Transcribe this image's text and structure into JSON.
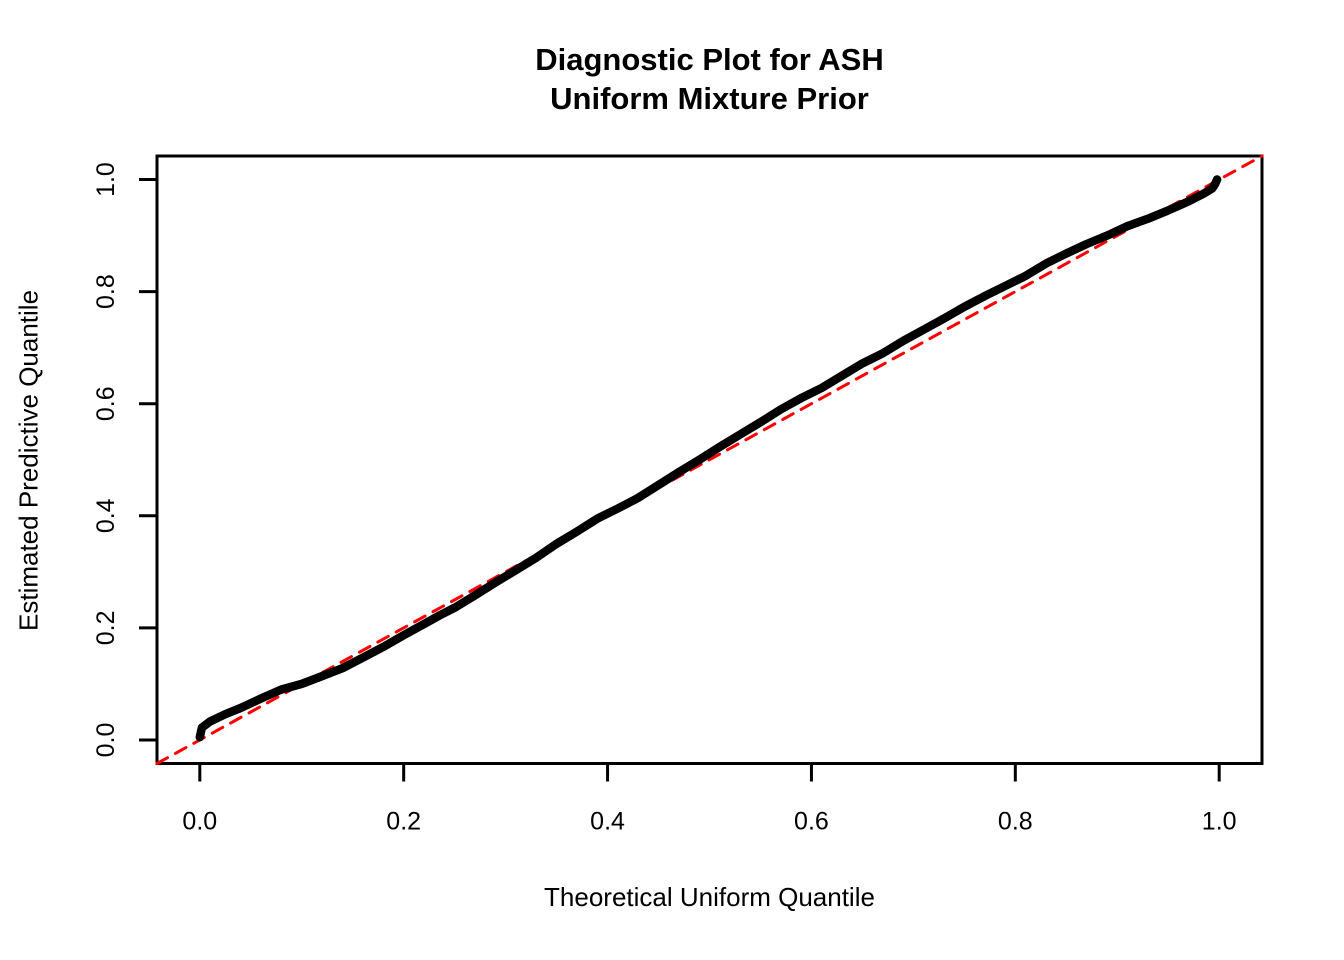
{
  "title": {
    "line1": "Diagnostic Plot for ASH",
    "line2": "Uniform Mixture Prior"
  },
  "axes": {
    "x_label": "Theoretical Uniform Quantile",
    "y_label": "Estimated Predictive Quantile"
  },
  "colors": {
    "background": "#FFFFFF",
    "curve": "#000000",
    "reference_line": "#FF0000",
    "frame": "#000000",
    "text": "#000000"
  },
  "chart_data": {
    "type": "line",
    "title": "Diagnostic Plot for ASH Uniform Mixture Prior",
    "xlabel": "Theoretical Uniform Quantile",
    "ylabel": "Estimated Predictive Quantile",
    "x_ticks": [
      "0.0",
      "0.2",
      "0.4",
      "0.6",
      "0.8",
      "1.0"
    ],
    "y_ticks": [
      "0.0",
      "0.2",
      "0.4",
      "0.6",
      "0.8",
      "1.0"
    ],
    "x_tick_values": [
      0.0,
      0.2,
      0.4,
      0.6,
      0.8,
      1.0
    ],
    "y_tick_values": [
      0.0,
      0.2,
      0.4,
      0.6,
      0.8,
      1.0
    ],
    "xlim": [
      -0.042,
      1.042
    ],
    "ylim": [
      -0.042,
      1.042
    ],
    "grid": false,
    "legend_position": "none",
    "frame": true,
    "series": [
      {
        "name": "estimated-vs-theoretical-quantile-curve",
        "type": "line",
        "color": "#000000",
        "stroke_width": 8.5,
        "dash": null,
        "points": [
          [
            0.0,
            0.005
          ],
          [
            0.002,
            0.022
          ],
          [
            0.01,
            0.033
          ],
          [
            0.025,
            0.046
          ],
          [
            0.04,
            0.057
          ],
          [
            0.06,
            0.074
          ],
          [
            0.08,
            0.09
          ],
          [
            0.1,
            0.1
          ],
          [
            0.12,
            0.114
          ],
          [
            0.14,
            0.128
          ],
          [
            0.16,
            0.147
          ],
          [
            0.18,
            0.166
          ],
          [
            0.2,
            0.187
          ],
          [
            0.22,
            0.207
          ],
          [
            0.235,
            0.222
          ],
          [
            0.25,
            0.236
          ],
          [
            0.27,
            0.258
          ],
          [
            0.29,
            0.281
          ],
          [
            0.31,
            0.303
          ],
          [
            0.33,
            0.325
          ],
          [
            0.35,
            0.35
          ],
          [
            0.37,
            0.372
          ],
          [
            0.39,
            0.395
          ],
          [
            0.41,
            0.413
          ],
          [
            0.43,
            0.432
          ],
          [
            0.45,
            0.455
          ],
          [
            0.47,
            0.478
          ],
          [
            0.49,
            0.5
          ],
          [
            0.51,
            0.523
          ],
          [
            0.53,
            0.545
          ],
          [
            0.55,
            0.567
          ],
          [
            0.57,
            0.59
          ],
          [
            0.59,
            0.61
          ],
          [
            0.61,
            0.628
          ],
          [
            0.63,
            0.65
          ],
          [
            0.65,
            0.672
          ],
          [
            0.67,
            0.69
          ],
          [
            0.69,
            0.712
          ],
          [
            0.71,
            0.732
          ],
          [
            0.73,
            0.752
          ],
          [
            0.75,
            0.773
          ],
          [
            0.77,
            0.792
          ],
          [
            0.79,
            0.81
          ],
          [
            0.81,
            0.828
          ],
          [
            0.83,
            0.85
          ],
          [
            0.85,
            0.868
          ],
          [
            0.87,
            0.885
          ],
          [
            0.89,
            0.9
          ],
          [
            0.91,
            0.917
          ],
          [
            0.93,
            0.93
          ],
          [
            0.95,
            0.945
          ],
          [
            0.97,
            0.961
          ],
          [
            0.985,
            0.975
          ],
          [
            0.993,
            0.984
          ],
          [
            0.996,
            0.992
          ],
          [
            0.998,
            1.0
          ]
        ]
      },
      {
        "name": "reference-line-y-equals-x",
        "type": "line",
        "color": "#FF0000",
        "stroke_width": 3,
        "dash": [
          12,
          9
        ],
        "points": [
          [
            -0.042,
            -0.042
          ],
          [
            1.042,
            1.042
          ]
        ]
      }
    ]
  }
}
